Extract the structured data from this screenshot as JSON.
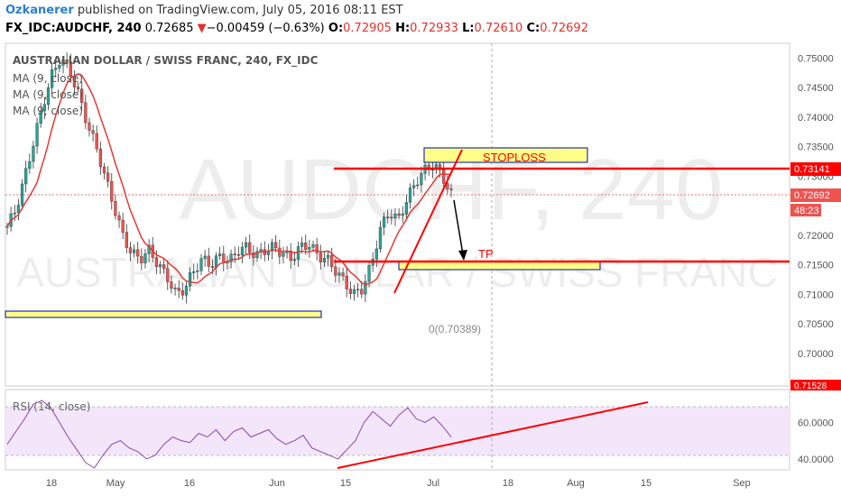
{
  "header": {
    "user": "Ozkanerer",
    "published": " published on TradingView.com, July 05, 2016 08:11 EST"
  },
  "quote": {
    "symbol": "FX_IDC:AUDCHF, 240",
    "last": "0.72685",
    "arrow": "▼",
    "change": "−0.00459 (−0.63%)",
    "o_label": "O:",
    "o": "0.72905",
    "h_label": "H:",
    "h": "0.72933",
    "l_label": "L:",
    "l": "0.72610",
    "c_label": "C:",
    "c": "0.72692"
  },
  "legend": {
    "title": "AUSTRALIAN DOLLAR / SWISS FRANC, 240, FX_IDC",
    "ma1": "MA (9, close)",
    "ma2": "MA (9, close)",
    "ma3": "MA (9, close)"
  },
  "watermark": {
    "big": "AUDCHF, 240",
    "sub": "AUSTRALIAN DOLLAR / SWISS FRANC"
  },
  "annotations": {
    "stoploss": "STOPLOSS",
    "tp": "TP",
    "fib": "0(0.70389)"
  },
  "price_labels": {
    "line_upper": "0.73141",
    "current": "0.72692",
    "countdown": "48:23",
    "line_lower": "0.71528"
  },
  "rsi": {
    "label": "RSI (14, close)"
  },
  "colors": {
    "up": "#26a69a",
    "down": "#ef5350",
    "annotation_red": "#ff0000",
    "zone_fill": "#ffff88",
    "zone_border": "#2233aa",
    "rsi_line": "#8e44ad",
    "rsi_band": "#f3e6fb"
  },
  "chart_data": [
    {
      "type": "candlestick",
      "title": "AUSTRALIAN DOLLAR / SWISS FRANC, 240, FX_IDC",
      "x_ticks": [
        "18",
        "May",
        "16",
        "Jun",
        "15",
        "Jul",
        "18",
        "Aug",
        "15",
        "Sep"
      ],
      "y_ticks": [
        "0.75000",
        "0.74500",
        "0.74000",
        "0.73500",
        "0.73000",
        "0.72000",
        "0.71500",
        "0.71000",
        "0.70500",
        "0.70000",
        "0.69500"
      ],
      "ylim": [
        0.6945,
        0.7525
      ],
      "series_close_path": [
        0.7215,
        0.7245,
        0.73,
        0.736,
        0.742,
        0.747,
        0.75,
        0.748,
        0.744,
        0.739,
        0.735,
        0.73,
        0.725,
        0.72,
        0.717,
        0.716,
        0.7175,
        0.715,
        0.713,
        0.71,
        0.711,
        0.714,
        0.716,
        0.715,
        0.7165,
        0.7155,
        0.7175,
        0.718,
        0.7165,
        0.7175,
        0.718,
        0.717,
        0.716,
        0.718,
        0.7185,
        0.7165,
        0.716,
        0.714,
        0.712,
        0.71,
        0.711,
        0.715,
        0.721,
        0.724,
        0.7225,
        0.726,
        0.729,
        0.731,
        0.732,
        0.73,
        0.727
      ],
      "ma_note": "MA (9, close) smooths the closes",
      "horizontal_lines": [
        0.73141,
        0.71528
      ],
      "current_price": 0.72692,
      "zones": [
        {
          "label": "STOPLOSS",
          "from": 0.7335,
          "to": 0.735
        },
        {
          "label": "TP",
          "from": 0.7145,
          "to": 0.7154
        },
        {
          "label": "",
          "from": 0.7058,
          "to": 0.7065
        }
      ]
    },
    {
      "type": "line",
      "title": "RSI (14, close)",
      "y_ticks": [
        "60.0000",
        "40.0000"
      ],
      "ylim": [
        34,
        78
      ],
      "bands": [
        30,
        70
      ],
      "values": [
        48,
        55,
        62,
        70,
        72,
        68,
        60,
        52,
        45,
        38,
        35,
        42,
        48,
        50,
        46,
        44,
        40,
        42,
        48,
        52,
        50,
        49,
        54,
        52,
        56,
        50,
        55,
        57,
        52,
        54,
        56,
        51,
        48,
        50,
        53,
        46,
        44,
        42,
        40,
        45,
        50,
        60,
        66,
        62,
        58,
        64,
        68,
        62,
        60,
        63,
        58,
        52
      ]
    }
  ]
}
